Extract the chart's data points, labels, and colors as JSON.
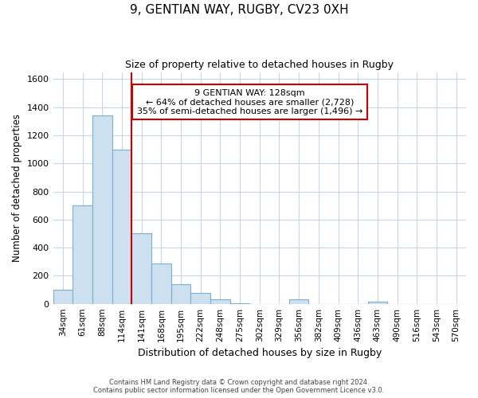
{
  "title": "9, GENTIAN WAY, RUGBY, CV23 0XH",
  "subtitle": "Size of property relative to detached houses in Rugby",
  "xlabel": "Distribution of detached houses by size in Rugby",
  "ylabel": "Number of detached properties",
  "bar_labels": [
    "34sqm",
    "61sqm",
    "88sqm",
    "114sqm",
    "141sqm",
    "168sqm",
    "195sqm",
    "222sqm",
    "248sqm",
    "275sqm",
    "302sqm",
    "329sqm",
    "356sqm",
    "382sqm",
    "409sqm",
    "436sqm",
    "463sqm",
    "490sqm",
    "516sqm",
    "543sqm",
    "570sqm"
  ],
  "bar_values": [
    100,
    700,
    1340,
    1100,
    500,
    285,
    140,
    75,
    30,
    5,
    0,
    0,
    35,
    0,
    0,
    0,
    15,
    0,
    0,
    0,
    0
  ],
  "bar_color": "#cce0f0",
  "bar_edge_color": "#7ab0d0",
  "ylim": [
    0,
    1650
  ],
  "yticks": [
    0,
    200,
    400,
    600,
    800,
    1000,
    1200,
    1400,
    1600
  ],
  "property_line_color": "#cc0000",
  "annotation_title": "9 GENTIAN WAY: 128sqm",
  "annotation_line1": "← 64% of detached houses are smaller (2,728)",
  "annotation_line2": "35% of semi-detached houses are larger (1,496) →",
  "annotation_box_color": "#ffffff",
  "annotation_box_edge": "#cc0000",
  "footer_line1": "Contains HM Land Registry data © Crown copyright and database right 2024.",
  "footer_line2": "Contains public sector information licensed under the Open Government Licence v3.0.",
  "bg_color": "#ffffff",
  "grid_color": "#c8d4e8"
}
